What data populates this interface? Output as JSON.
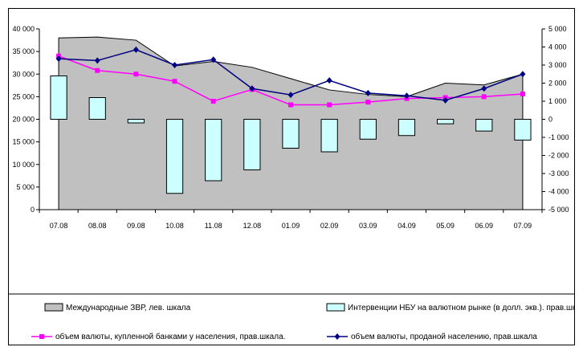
{
  "chart_data": {
    "type": "bar",
    "categories": [
      "07.08",
      "08.08",
      "09.08",
      "10.08",
      "11.08",
      "12.08",
      "01.09",
      "02.09",
      "03.09",
      "04.09",
      "05.09",
      "06.09",
      "07.09"
    ],
    "left_axis": {
      "min": 0,
      "max": 40000,
      "step": 5000,
      "tick_labels": [
        "0",
        "5 000",
        "10 000",
        "15 000",
        "20 000",
        "25 000",
        "30 000",
        "35 000",
        "40 000"
      ]
    },
    "right_axis": {
      "min": -5000,
      "max": 5000,
      "step": 1000,
      "tick_labels": [
        "-5 000",
        "-4 000",
        "-3 000",
        "-2 000",
        "-1 000",
        "0",
        "1 000",
        "2 000",
        "3 000",
        "4 000",
        "5 000"
      ]
    },
    "series": [
      {
        "name": "Международные ЗВР, лев. шкала",
        "kind": "area",
        "axis": "left",
        "color": "#c0c0c0",
        "values": [
          38000,
          38200,
          37500,
          31800,
          32800,
          31500,
          29000,
          26500,
          25500,
          25000,
          28000,
          27600,
          30000
        ]
      },
      {
        "name": "Интервенции НБУ на валютном рынке (в долл. экв.). прав.шкала.",
        "kind": "bar",
        "axis": "right",
        "color": "#ccffff",
        "values": [
          2400,
          1200,
          -200,
          -4100,
          -3400,
          -2800,
          -1600,
          -1800,
          -1100,
          -900,
          -250,
          -650,
          -1150
        ]
      },
      {
        "name": "объем валюты, купленной банками у населения, прав.шкала.",
        "kind": "line",
        "axis": "right",
        "color": "#ff00ff",
        "marker": "square",
        "values": [
          3500,
          2700,
          2500,
          2100,
          1000,
          1650,
          800,
          800,
          950,
          1150,
          1200,
          1250,
          1400
        ]
      },
      {
        "name": "объем валюты, проданой населению, прав.шкала",
        "kind": "line",
        "axis": "right",
        "color": "#000080",
        "marker": "diamond",
        "values": [
          3350,
          3250,
          3850,
          3000,
          3300,
          1700,
          1350,
          2150,
          1450,
          1300,
          1050,
          1700,
          2500
        ]
      }
    ]
  }
}
